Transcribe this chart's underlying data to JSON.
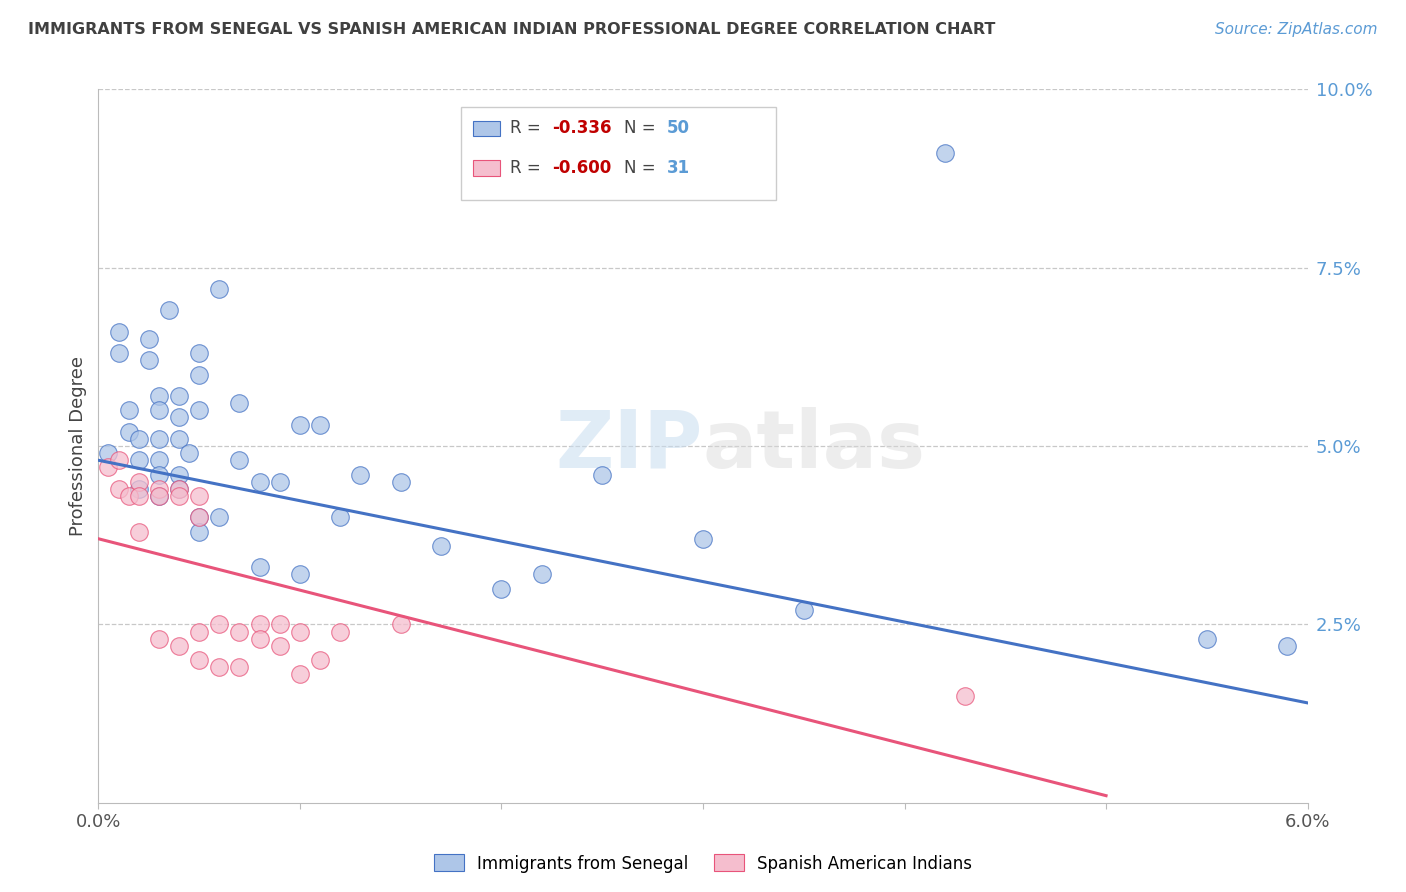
{
  "title": "IMMIGRANTS FROM SENEGAL VS SPANISH AMERICAN INDIAN PROFESSIONAL DEGREE CORRELATION CHART",
  "source": "Source: ZipAtlas.com",
  "ylabel": "Professional Degree",
  "xlim": [
    0.0,
    0.06
  ],
  "ylim": [
    0.0,
    0.1
  ],
  "blue_r": "-0.336",
  "blue_n": "50",
  "pink_r": "-0.600",
  "pink_n": "31",
  "watermark_zip": "ZIP",
  "watermark_atlas": "atlas",
  "blue_color": "#aec6e8",
  "pink_color": "#f5bece",
  "blue_line_color": "#4472c4",
  "pink_line_color": "#e8547a",
  "grid_color": "#c8c8c8",
  "title_color": "#404040",
  "source_color": "#5b9bd5",
  "right_tick_color": "#5b9bd5",
  "blue_scatter_x": [
    0.0005,
    0.001,
    0.001,
    0.0015,
    0.0015,
    0.002,
    0.002,
    0.002,
    0.0025,
    0.0025,
    0.003,
    0.003,
    0.003,
    0.003,
    0.003,
    0.003,
    0.0035,
    0.004,
    0.004,
    0.004,
    0.004,
    0.004,
    0.0045,
    0.005,
    0.005,
    0.005,
    0.005,
    0.005,
    0.006,
    0.006,
    0.007,
    0.007,
    0.008,
    0.008,
    0.009,
    0.01,
    0.01,
    0.011,
    0.012,
    0.013,
    0.015,
    0.017,
    0.02,
    0.022,
    0.025,
    0.03,
    0.035,
    0.042,
    0.055,
    0.059
  ],
  "blue_scatter_y": [
    0.049,
    0.066,
    0.063,
    0.055,
    0.052,
    0.051,
    0.048,
    0.044,
    0.065,
    0.062,
    0.057,
    0.055,
    0.051,
    0.048,
    0.046,
    0.043,
    0.069,
    0.057,
    0.054,
    0.051,
    0.046,
    0.044,
    0.049,
    0.063,
    0.06,
    0.055,
    0.04,
    0.038,
    0.072,
    0.04,
    0.056,
    0.048,
    0.045,
    0.033,
    0.045,
    0.053,
    0.032,
    0.053,
    0.04,
    0.046,
    0.045,
    0.036,
    0.03,
    0.032,
    0.046,
    0.037,
    0.027,
    0.091,
    0.023,
    0.022
  ],
  "pink_scatter_x": [
    0.0005,
    0.001,
    0.001,
    0.0015,
    0.002,
    0.002,
    0.002,
    0.003,
    0.003,
    0.003,
    0.004,
    0.004,
    0.004,
    0.005,
    0.005,
    0.005,
    0.005,
    0.006,
    0.006,
    0.007,
    0.007,
    0.008,
    0.008,
    0.009,
    0.009,
    0.01,
    0.01,
    0.011,
    0.012,
    0.015,
    0.043
  ],
  "pink_scatter_y": [
    0.047,
    0.048,
    0.044,
    0.043,
    0.045,
    0.043,
    0.038,
    0.044,
    0.043,
    0.023,
    0.044,
    0.043,
    0.022,
    0.043,
    0.04,
    0.024,
    0.02,
    0.025,
    0.019,
    0.024,
    0.019,
    0.025,
    0.023,
    0.025,
    0.022,
    0.024,
    0.018,
    0.02,
    0.024,
    0.025,
    0.015
  ],
  "blue_line_x0": 0.0,
  "blue_line_x1": 0.06,
  "blue_line_y0": 0.048,
  "blue_line_y1": 0.014,
  "pink_line_x0": 0.0,
  "pink_line_x1": 0.05,
  "pink_line_y0": 0.037,
  "pink_line_y1": 0.001
}
